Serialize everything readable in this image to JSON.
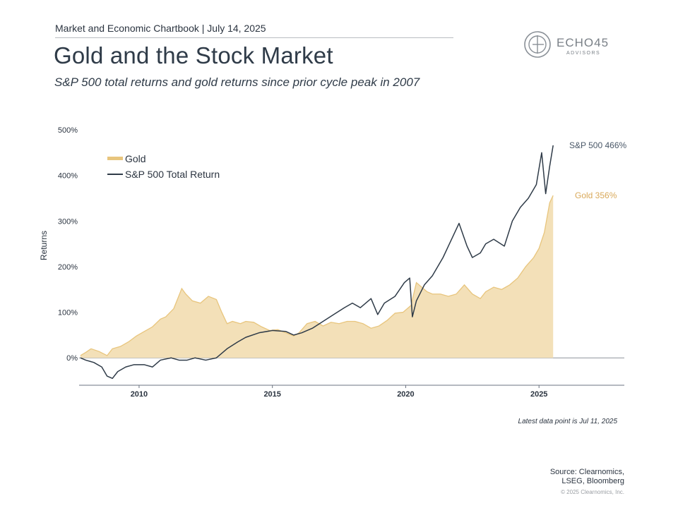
{
  "header": {
    "top_line": "Market and Economic Chartbook | July 14, 2025",
    "title": "Gold and the Stock Market",
    "subtitle": "S&P 500 total returns and gold returns since prior cycle peak in 2007"
  },
  "logo": {
    "name": "ECHO45",
    "sub": "ADVISORS"
  },
  "colors": {
    "gold": "#e8c57d",
    "gold_fill": "#f3e0b8",
    "sp500": "#2f3b48",
    "gold_label": "#d9a95a",
    "sp_label": "#4a5868"
  },
  "chart_data": {
    "type": "area+line",
    "title": "Gold and the Stock Market",
    "ylabel": "Returns",
    "xlabel": "",
    "ylim": [
      -60,
      500
    ],
    "xlim": [
      2007.75,
      2028.2
    ],
    "yticks": [
      {
        "value": 0,
        "label": "0%"
      },
      {
        "value": 100,
        "label": "100%"
      },
      {
        "value": 200,
        "label": "200%"
      },
      {
        "value": 300,
        "label": "300%"
      },
      {
        "value": 400,
        "label": "400%"
      },
      {
        "value": 500,
        "label": "500%"
      }
    ],
    "xticks": [
      {
        "value": 2010,
        "label": "2010"
      },
      {
        "value": 2015,
        "label": "2015"
      },
      {
        "value": 2020,
        "label": "2020"
      },
      {
        "value": 2025,
        "label": "2025"
      }
    ],
    "legend": [
      "Gold",
      "S&P 500 Total Return"
    ],
    "series": [
      {
        "name": "Gold",
        "style": "area",
        "end_label": "Gold 356%",
        "x": [
          2007.8,
          2008.0,
          2008.2,
          2008.5,
          2008.8,
          2009.0,
          2009.3,
          2009.6,
          2009.9,
          2010.2,
          2010.5,
          2010.8,
          2011.0,
          2011.3,
          2011.6,
          2011.75,
          2012.0,
          2012.3,
          2012.6,
          2012.9,
          2013.1,
          2013.3,
          2013.5,
          2013.8,
          2014.0,
          2014.3,
          2014.6,
          2014.9,
          2015.2,
          2015.5,
          2015.8,
          2016.0,
          2016.3,
          2016.6,
          2016.9,
          2017.2,
          2017.5,
          2017.8,
          2018.1,
          2018.4,
          2018.7,
          2019.0,
          2019.3,
          2019.6,
          2019.9,
          2020.0,
          2020.2,
          2020.4,
          2020.6,
          2020.8,
          2021.0,
          2021.3,
          2021.6,
          2021.9,
          2022.2,
          2022.5,
          2022.8,
          2023.0,
          2023.3,
          2023.6,
          2023.9,
          2024.2,
          2024.5,
          2024.8,
          2025.0,
          2025.2,
          2025.4,
          2025.53
        ],
        "values": [
          5,
          12,
          20,
          14,
          5,
          20,
          25,
          35,
          48,
          58,
          68,
          85,
          90,
          108,
          152,
          140,
          125,
          120,
          135,
          128,
          100,
          75,
          80,
          75,
          80,
          78,
          68,
          60,
          62,
          55,
          48,
          55,
          75,
          80,
          70,
          78,
          75,
          80,
          80,
          75,
          65,
          70,
          82,
          98,
          100,
          105,
          115,
          165,
          155,
          145,
          140,
          140,
          135,
          140,
          160,
          140,
          130,
          145,
          155,
          150,
          160,
          175,
          200,
          220,
          240,
          275,
          340,
          356
        ]
      },
      {
        "name": "S&P 500 Total Return",
        "style": "line",
        "end_label": "S&P 500 466%",
        "x": [
          2007.8,
          2008.0,
          2008.3,
          2008.6,
          2008.8,
          2009.0,
          2009.2,
          2009.5,
          2009.8,
          2010.2,
          2010.5,
          2010.8,
          2011.2,
          2011.5,
          2011.8,
          2012.1,
          2012.5,
          2012.9,
          2013.3,
          2013.7,
          2014.0,
          2014.5,
          2015.0,
          2015.5,
          2015.8,
          2016.1,
          2016.5,
          2016.9,
          2017.3,
          2017.7,
          2018.0,
          2018.3,
          2018.7,
          2018.95,
          2019.2,
          2019.6,
          2019.95,
          2020.15,
          2020.25,
          2020.4,
          2020.7,
          2021.0,
          2021.4,
          2021.8,
          2022.0,
          2022.3,
          2022.5,
          2022.8,
          2023.0,
          2023.3,
          2023.7,
          2024.0,
          2024.3,
          2024.6,
          2024.9,
          2025.1,
          2025.25,
          2025.4,
          2025.53
        ],
        "values": [
          0,
          -5,
          -10,
          -20,
          -40,
          -45,
          -30,
          -20,
          -15,
          -15,
          -20,
          -5,
          0,
          -5,
          -5,
          0,
          -5,
          0,
          20,
          35,
          45,
          55,
          60,
          58,
          50,
          55,
          65,
          80,
          95,
          110,
          120,
          110,
          130,
          95,
          120,
          135,
          165,
          175,
          90,
          125,
          160,
          180,
          220,
          270,
          295,
          245,
          220,
          230,
          250,
          260,
          245,
          300,
          330,
          350,
          380,
          450,
          360,
          420,
          466
        ]
      }
    ]
  },
  "footer": {
    "note": "Latest data point is Jul 11, 2025",
    "source_line1": "Source: Clearnomics,",
    "source_line2": "LSEG, Bloomberg",
    "copyright": "© 2025 Clearnomics, Inc."
  }
}
